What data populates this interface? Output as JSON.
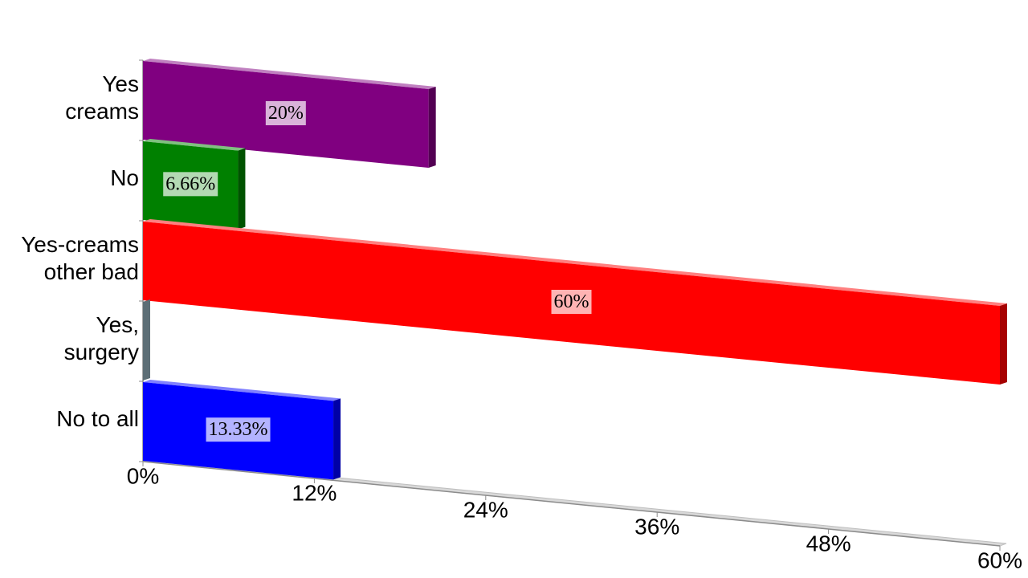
{
  "chart_data": {
    "type": "bar3d",
    "categories": [
      "Yes\ncreams",
      "No",
      "Yes-creams\nother bad",
      "Yes,\nsurgery",
      "No to all"
    ],
    "values": [
      20,
      6.66,
      60,
      0,
      13.33
    ],
    "value_labels": [
      "20%",
      "6.66%",
      "60%",
      null,
      "13.33%"
    ],
    "colors": [
      "#800080",
      "#008000",
      "#ff0000",
      "#8fa9b5",
      "#0000ff"
    ],
    "xlim": [
      0,
      60
    ],
    "xticks": [
      {
        "value": 0,
        "label": "0%"
      },
      {
        "value": 12,
        "label": "12%"
      },
      {
        "value": 24,
        "label": "24%"
      },
      {
        "value": 36,
        "label": "36%"
      },
      {
        "value": 48,
        "label": "48%"
      },
      {
        "value": 60,
        "label": "60%"
      }
    ]
  }
}
